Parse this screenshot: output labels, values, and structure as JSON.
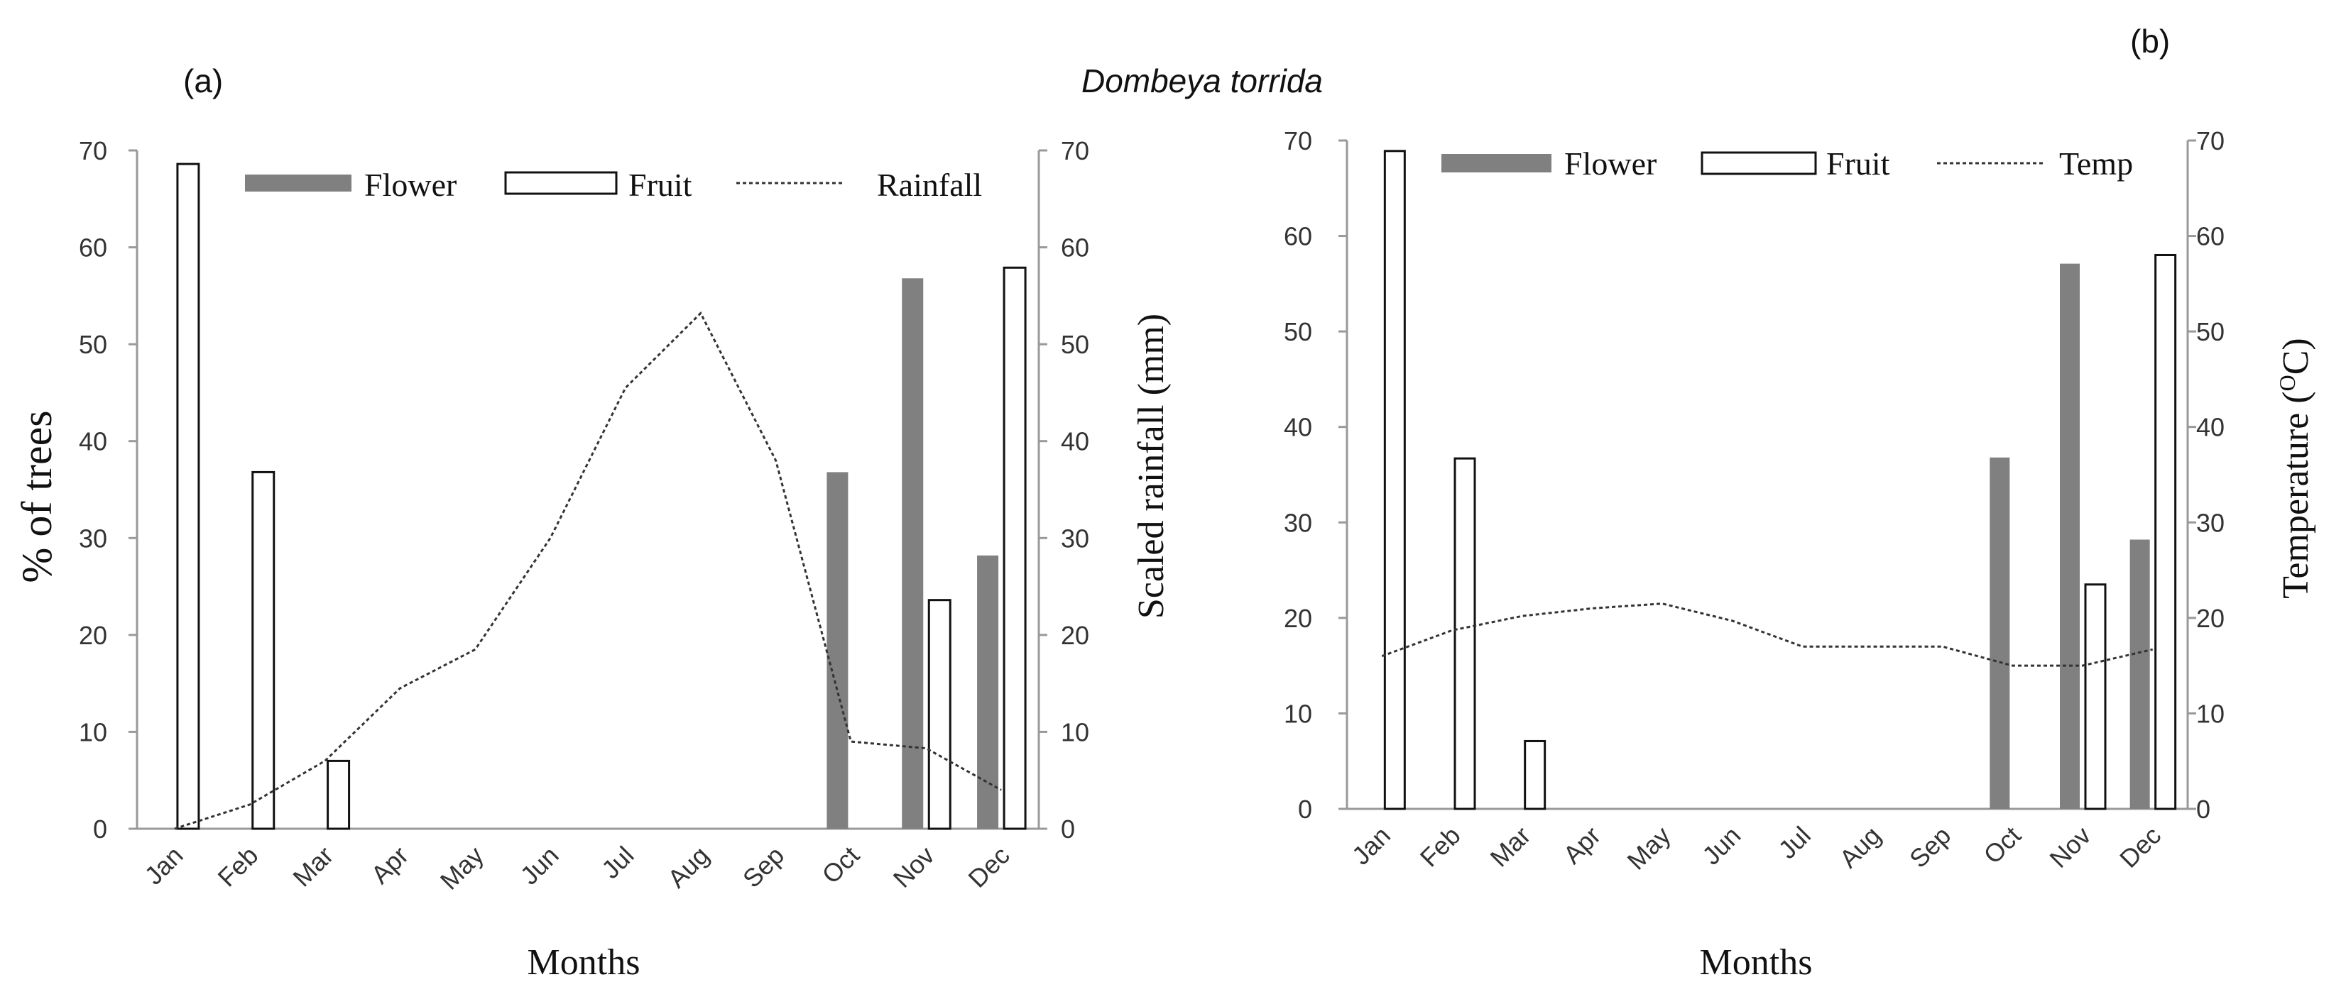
{
  "figure_title": "Dombeya torrida",
  "colors": {
    "flower": "#808080",
    "fruit_fill": "#ffffff",
    "fruit_stroke": "#111111",
    "line": "#333333",
    "axis": "#999999"
  },
  "chart_data": [
    {
      "panel_label": "(a)",
      "type": "bar",
      "categories": [
        "Jan",
        "Feb",
        "Mar",
        "Apr",
        "May",
        "Jun",
        "Jul",
        "Aug",
        "Sep",
        "Oct",
        "Nov",
        "Dec"
      ],
      "series": [
        {
          "name": "Flower",
          "kind": "bar",
          "axis": "left",
          "values": [
            0,
            0,
            0,
            0,
            0,
            0,
            0,
            0,
            0,
            36.8,
            56.8,
            28.2
          ]
        },
        {
          "name": "Fruit",
          "kind": "bar",
          "axis": "left",
          "values": [
            68.6,
            36.8,
            7.0,
            0,
            0,
            0,
            0,
            0,
            0,
            0,
            23.6,
            57.9
          ]
        },
        {
          "name": "Rainfall",
          "kind": "line",
          "axis": "right",
          "values": [
            0,
            2.5,
            7,
            14.5,
            18.5,
            30,
            45.5,
            53.2,
            38,
            9,
            8.3,
            4
          ]
        }
      ],
      "legend": [
        "Flower",
        "Fruit",
        "Rainfall"
      ],
      "xlabel": "Months",
      "ylabel": "% of trees",
      "y2label": "Scaled rainfall (mm)",
      "ylim": [
        0,
        70
      ],
      "y2lim": [
        0,
        70
      ],
      "yticks": [
        "0",
        "10",
        "20",
        "30",
        "40",
        "50",
        "60",
        "70"
      ],
      "y2ticks": [
        "0",
        "10",
        "20",
        "30",
        "40",
        "50",
        "60",
        "70"
      ],
      "grid": false
    },
    {
      "panel_label": "(b)",
      "type": "bar",
      "categories": [
        "Jan",
        "Feb",
        "Mar",
        "Apr",
        "May",
        "Jun",
        "Jul",
        "Aug",
        "Sep",
        "Oct",
        "Nov",
        "Dec"
      ],
      "series": [
        {
          "name": "Flower",
          "kind": "bar",
          "axis": "left",
          "values": [
            0,
            0,
            0,
            0,
            0,
            0,
            0,
            0,
            0,
            36.8,
            57.1,
            28.2
          ]
        },
        {
          "name": "Fruit",
          "kind": "bar",
          "axis": "left",
          "values": [
            68.9,
            36.7,
            7.1,
            0,
            0,
            0,
            0,
            0,
            0,
            0,
            23.5,
            58.0
          ]
        },
        {
          "name": "Temp",
          "kind": "line",
          "axis": "right",
          "values": [
            16,
            18.7,
            20.2,
            21,
            21.5,
            19.7,
            17,
            17,
            17,
            15,
            15,
            16.7
          ]
        }
      ],
      "legend": [
        "Flower",
        "Fruit",
        "Temp"
      ],
      "xlabel": "Months",
      "ylabel": "",
      "y2label": "Temperature (OC)",
      "y2label_main": "Temperature (",
      "y2label_sup": "O",
      "y2label_tail": "C)",
      "ylim": [
        0,
        70
      ],
      "y2lim": [
        0,
        70
      ],
      "yticks": [
        "0",
        "10",
        "20",
        "30",
        "40",
        "50",
        "60",
        "70"
      ],
      "y2ticks": [
        "0",
        "10",
        "20",
        "30",
        "40",
        "50",
        "60",
        "70"
      ],
      "grid": false
    }
  ]
}
